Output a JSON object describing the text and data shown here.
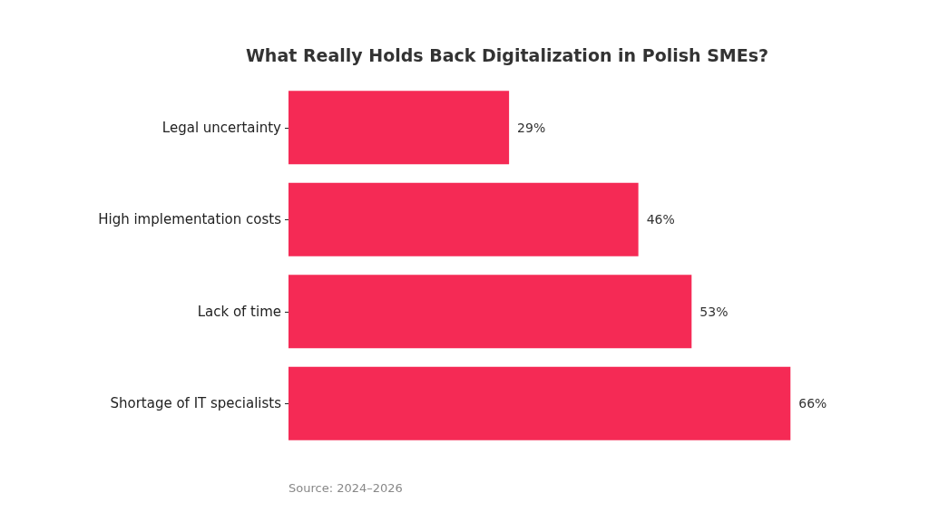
{
  "chart_data": {
    "type": "bar",
    "orientation": "horizontal",
    "title": "What Really Holds Back Digitalization in Polish SMEs?",
    "categories": [
      "Legal uncertainty",
      "High implementation costs",
      "Lack of time",
      "Shortage of IT specialists"
    ],
    "values": [
      29,
      46,
      53,
      66
    ],
    "value_labels": [
      "29%",
      "46%",
      "53%",
      "66%"
    ],
    "color": "#f52a55",
    "annotations": [
      "Source: 2024–2026"
    ]
  }
}
